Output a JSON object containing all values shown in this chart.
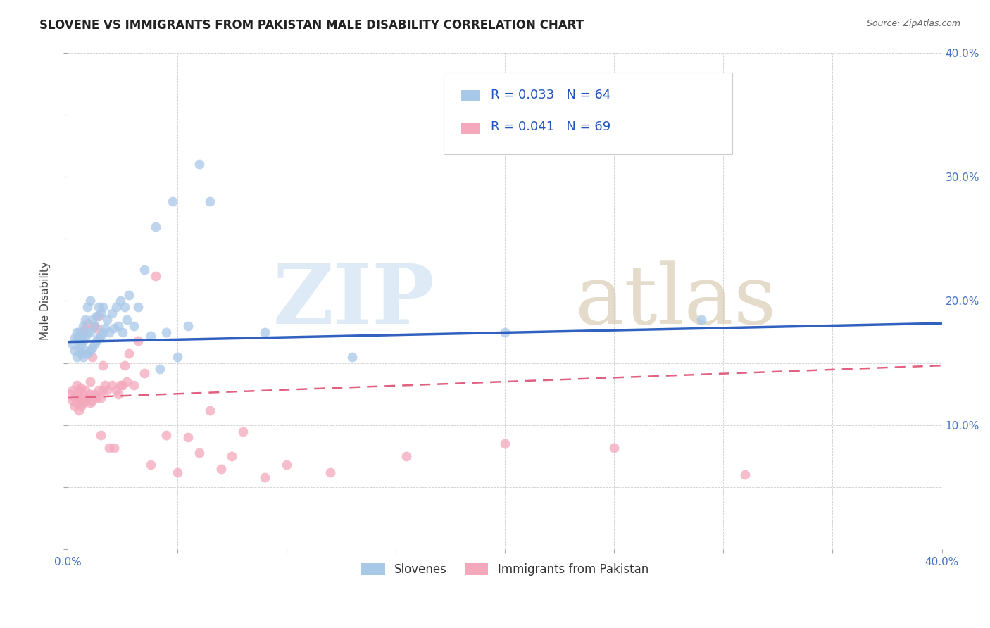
{
  "title": "SLOVENE VS IMMIGRANTS FROM PAKISTAN MALE DISABILITY CORRELATION CHART",
  "source": "Source: ZipAtlas.com",
  "ylabel": "Male Disability",
  "legend_label_1": "Slovenes",
  "legend_label_2": "Immigrants from Pakistan",
  "r1": "0.033",
  "n1": "64",
  "r2": "0.041",
  "n2": "69",
  "color_slovene": "#a8c8e8",
  "color_pakistan": "#f4a8bc",
  "color_line_slovene": "#3060c0",
  "color_line_pakistan": "#e06080",
  "xlim": [
    0.0,
    0.4
  ],
  "ylim": [
    0.0,
    0.4
  ],
  "slovene_x": [
    0.002,
    0.003,
    0.003,
    0.004,
    0.004,
    0.004,
    0.005,
    0.005,
    0.005,
    0.006,
    0.006,
    0.006,
    0.007,
    0.007,
    0.007,
    0.008,
    0.008,
    0.008,
    0.009,
    0.009,
    0.009,
    0.01,
    0.01,
    0.01,
    0.011,
    0.011,
    0.012,
    0.012,
    0.013,
    0.013,
    0.014,
    0.014,
    0.015,
    0.015,
    0.016,
    0.016,
    0.017,
    0.018,
    0.019,
    0.02,
    0.021,
    0.022,
    0.023,
    0.024,
    0.025,
    0.026,
    0.027,
    0.028,
    0.03,
    0.032,
    0.035,
    0.038,
    0.04,
    0.042,
    0.045,
    0.048,
    0.05,
    0.055,
    0.06,
    0.065,
    0.09,
    0.13,
    0.2,
    0.29
  ],
  "slovene_y": [
    0.165,
    0.16,
    0.17,
    0.155,
    0.17,
    0.175,
    0.16,
    0.168,
    0.175,
    0.158,
    0.165,
    0.172,
    0.155,
    0.168,
    0.18,
    0.16,
    0.17,
    0.185,
    0.158,
    0.175,
    0.195,
    0.16,
    0.175,
    0.2,
    0.162,
    0.185,
    0.165,
    0.18,
    0.168,
    0.188,
    0.17,
    0.195,
    0.172,
    0.19,
    0.175,
    0.195,
    0.178,
    0.185,
    0.175,
    0.19,
    0.178,
    0.195,
    0.18,
    0.2,
    0.175,
    0.195,
    0.185,
    0.205,
    0.18,
    0.195,
    0.225,
    0.172,
    0.26,
    0.145,
    0.175,
    0.28,
    0.155,
    0.18,
    0.31,
    0.28,
    0.175,
    0.155,
    0.175,
    0.185
  ],
  "pakistan_x": [
    0.001,
    0.002,
    0.002,
    0.003,
    0.003,
    0.004,
    0.004,
    0.004,
    0.005,
    0.005,
    0.005,
    0.006,
    0.006,
    0.006,
    0.007,
    0.007,
    0.007,
    0.008,
    0.008,
    0.008,
    0.009,
    0.009,
    0.01,
    0.01,
    0.01,
    0.011,
    0.011,
    0.012,
    0.012,
    0.013,
    0.013,
    0.014,
    0.014,
    0.015,
    0.015,
    0.016,
    0.016,
    0.017,
    0.018,
    0.019,
    0.02,
    0.021,
    0.022,
    0.023,
    0.024,
    0.025,
    0.026,
    0.027,
    0.028,
    0.03,
    0.032,
    0.035,
    0.038,
    0.04,
    0.045,
    0.05,
    0.055,
    0.06,
    0.065,
    0.07,
    0.075,
    0.08,
    0.09,
    0.1,
    0.12,
    0.155,
    0.2,
    0.25,
    0.31
  ],
  "pakistan_y": [
    0.125,
    0.12,
    0.128,
    0.115,
    0.122,
    0.118,
    0.125,
    0.132,
    0.112,
    0.12,
    0.128,
    0.115,
    0.122,
    0.13,
    0.118,
    0.175,
    0.125,
    0.12,
    0.178,
    0.128,
    0.122,
    0.182,
    0.118,
    0.125,
    0.135,
    0.12,
    0.155,
    0.125,
    0.18,
    0.122,
    0.178,
    0.128,
    0.188,
    0.122,
    0.092,
    0.128,
    0.148,
    0.132,
    0.128,
    0.082,
    0.132,
    0.082,
    0.128,
    0.125,
    0.132,
    0.132,
    0.148,
    0.135,
    0.158,
    0.132,
    0.168,
    0.142,
    0.068,
    0.22,
    0.092,
    0.062,
    0.09,
    0.078,
    0.112,
    0.065,
    0.075,
    0.095,
    0.058,
    0.068,
    0.062,
    0.075,
    0.085,
    0.082,
    0.06
  ]
}
